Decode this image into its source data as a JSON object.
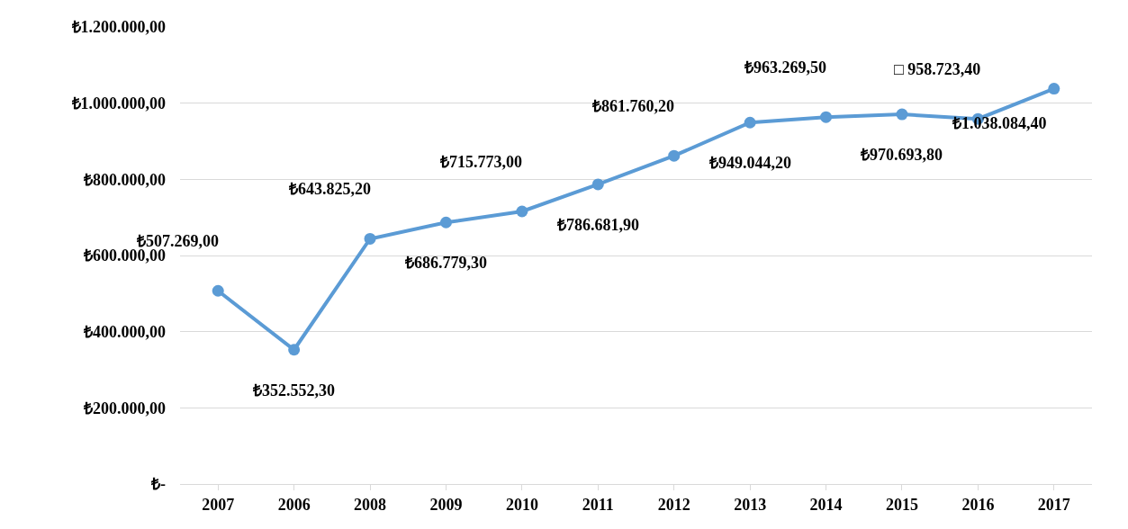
{
  "chart_data": {
    "type": "line",
    "categories": [
      "2007",
      "2006",
      "2008",
      "2009",
      "2010",
      "2011",
      "2012",
      "2013",
      "2014",
      "2015",
      "2016",
      "2017"
    ],
    "series": [
      {
        "color": "#5b9bd5",
        "values": [
          507269.0,
          352552.3,
          643825.2,
          686779.3,
          715773.0,
          786681.9,
          861760.2,
          949044.2,
          963269.5,
          970693.8,
          958723.4,
          1038084.4
        ],
        "value_labels": [
          "₺507.269,00",
          "₺352.552,30",
          "₺643.825,20",
          "₺686.779,30",
          "₺715.773,00",
          "₺786.681,90",
          "₺861.760,20",
          "₺949.044,20",
          "₺963.269,50",
          "₺970.693,80",
          "□ 958.723,40",
          "₺1.038.084,40"
        ]
      }
    ],
    "ylim": [
      0,
      1200000
    ],
    "yticks": [
      {
        "value": 0,
        "label": "₺-"
      },
      {
        "value": 200000,
        "label": "₺200.000,00"
      },
      {
        "value": 400000,
        "label": "₺400.000,00"
      },
      {
        "value": 600000,
        "label": "₺600.000,00"
      },
      {
        "value": 800000,
        "label": "₺800.000,00"
      },
      {
        "value": 1000000,
        "label": "₺1.000.000,00"
      },
      {
        "value": 1200000,
        "label": "₺1.200.000,00"
      }
    ],
    "grid": "y",
    "marker": "circle",
    "line_style": "solid",
    "legend": false
  }
}
